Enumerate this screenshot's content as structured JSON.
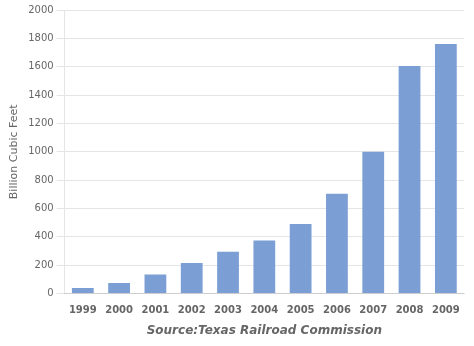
{
  "chart_data": {
    "type": "bar",
    "categories": [
      "1999",
      "2000",
      "2001",
      "2002",
      "2003",
      "2004",
      "2005",
      "2006",
      "2007",
      "2008",
      "2009"
    ],
    "values": [
      40,
      75,
      135,
      215,
      295,
      375,
      490,
      705,
      1000,
      1605,
      1760
    ],
    "color": "#7b9fd4",
    "xlabel": "Source:Texas Railroad Commission",
    "ylabel": "Billion Cubic Feet",
    "ylim": [
      0,
      2000
    ],
    "yticks": [
      0,
      200,
      400,
      600,
      800,
      1000,
      1200,
      1400,
      1600,
      1800,
      2000
    ],
    "grid": true
  }
}
